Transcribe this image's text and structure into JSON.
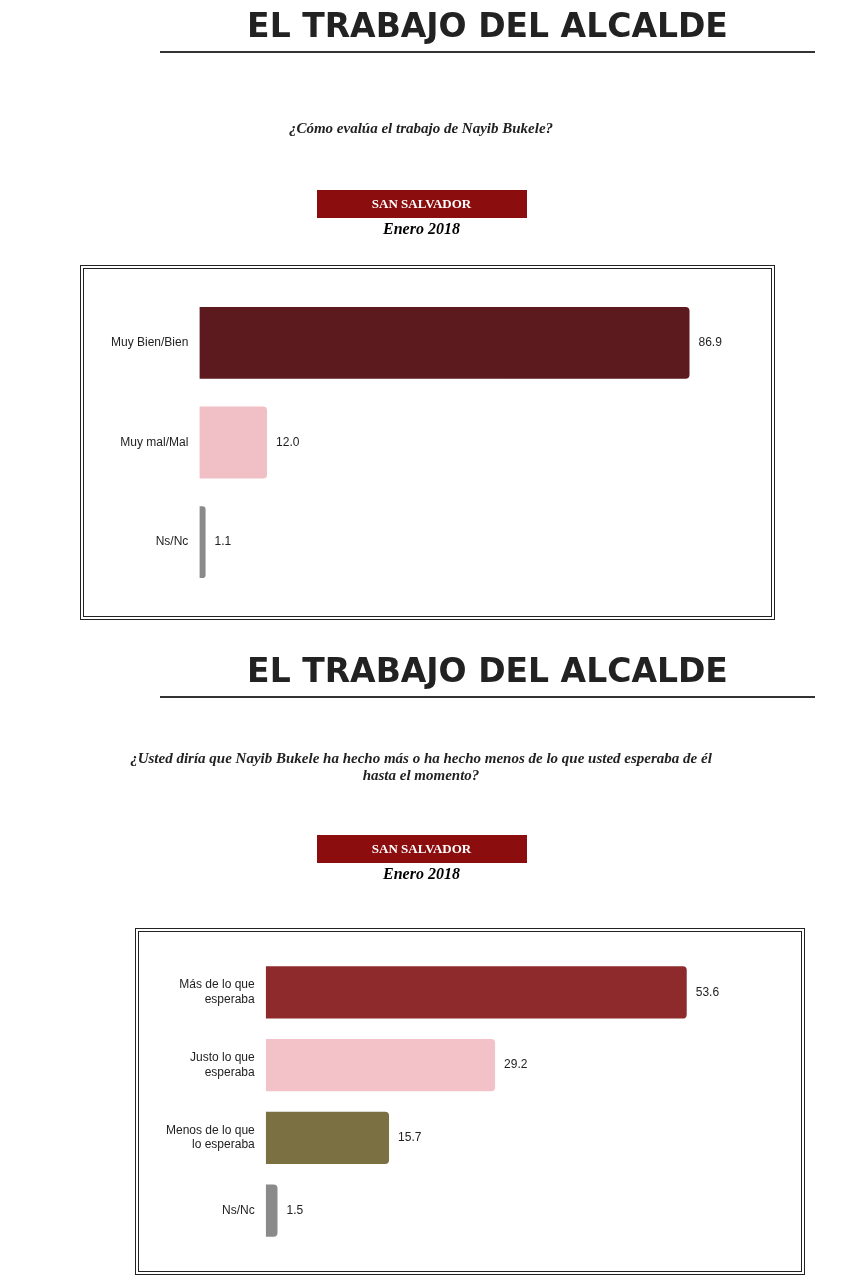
{
  "chart_data": [
    {
      "type": "bar",
      "orientation": "horizontal",
      "title": "EL TRABAJO DEL ALCALDE",
      "subtitle": "¿Cómo evalúa el trabajo de Nayib Bukele?",
      "annotations": [
        "SAN SALVADOR",
        "Enero 2018"
      ],
      "categories": [
        "Muy Bien/Bien",
        "Muy mal/Mal",
        "Ns/Nc"
      ],
      "values": [
        86.9,
        12.0,
        1.1
      ],
      "value_labels": [
        "86.9",
        "12.0",
        "1.1"
      ],
      "colors": [
        "#5c1a1e",
        "#f0c0c6",
        "#8a8a8a"
      ]
    },
    {
      "type": "bar",
      "orientation": "horizontal",
      "title": "EL TRABAJO DEL ALCALDE",
      "subtitle": "¿Usted diría que Nayib Bukele ha hecho más o ha hecho menos de lo que usted esperaba de él hasta el momento?",
      "annotations": [
        "SAN SALVADOR",
        "Enero 2018"
      ],
      "categories": [
        "Más de lo que esperaba",
        "Justo lo que esperaba",
        "Menos de lo que lo esperaba",
        "Ns/Nc"
      ],
      "values": [
        53.6,
        29.2,
        15.7,
        1.5
      ],
      "value_labels": [
        "53.6",
        "29.2",
        "15.7",
        "1.5"
      ],
      "colors": [
        "#8e2a2c",
        "#f2c2c8",
        "#7a7042",
        "#8a8a8a"
      ]
    }
  ]
}
